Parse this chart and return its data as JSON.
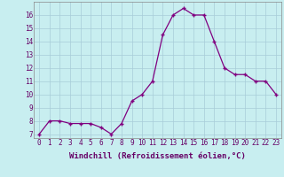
{
  "x": [
    0,
    1,
    2,
    3,
    4,
    5,
    6,
    7,
    8,
    9,
    10,
    11,
    12,
    13,
    14,
    15,
    16,
    17,
    18,
    19,
    20,
    21,
    22,
    23
  ],
  "y": [
    7,
    8,
    8,
    7.8,
    7.8,
    7.8,
    7.5,
    7,
    7.8,
    9.5,
    10,
    11,
    14.5,
    16,
    16.5,
    16,
    16,
    14,
    12,
    11.5,
    11.5,
    11,
    11,
    10
  ],
  "line_color": "#800080",
  "marker": "+",
  "bg_color": "#c8eef0",
  "grid_color": "#a8ccd8",
  "xlabel": "Windchill (Refroidissement éolien,°C)",
  "ylabel_ticks": [
    7,
    8,
    9,
    10,
    11,
    12,
    13,
    14,
    15,
    16
  ],
  "xlim": [
    -0.5,
    23.5
  ],
  "ylim": [
    6.7,
    17.0
  ],
  "xticks": [
    0,
    1,
    2,
    3,
    4,
    5,
    6,
    7,
    8,
    9,
    10,
    11,
    12,
    13,
    14,
    15,
    16,
    17,
    18,
    19,
    20,
    21,
    22,
    23
  ],
  "xtick_labels": [
    "0",
    "1",
    "2",
    "3",
    "4",
    "5",
    "6",
    "7",
    "8",
    "9",
    "10",
    "11",
    "12",
    "13",
    "14",
    "15",
    "16",
    "17",
    "18",
    "19",
    "20",
    "21",
    "22",
    "23"
  ],
  "xlabel_fontsize": 6.5,
  "tick_fontsize": 5.5,
  "linewidth": 0.9,
  "markersize": 3.5,
  "markeredgewidth": 1.0
}
